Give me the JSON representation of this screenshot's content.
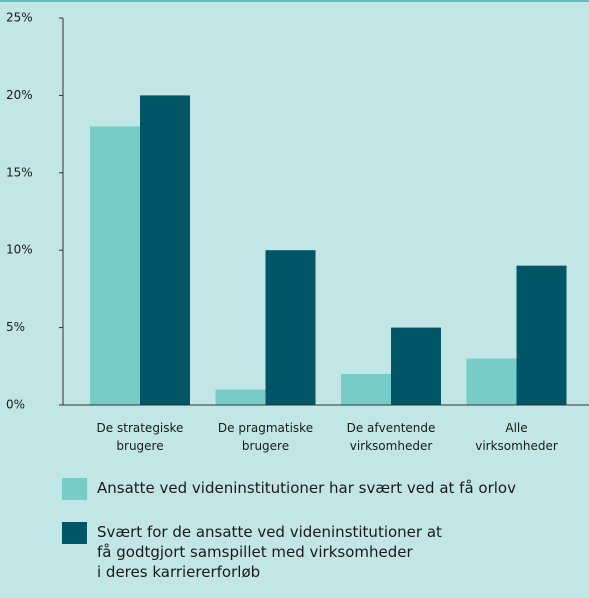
{
  "chart_data": {
    "type": "bar",
    "categories": [
      "De strategiske\nbrugere",
      "De pragmatiske\nbrugere",
      "De afventende\nvirksomheder",
      "Alle\nvirksomheder"
    ],
    "series": [
      {
        "name": "Ansatte ved videninstitutioner har svært ved at få orlov",
        "color": "#77ccc8",
        "values": [
          18,
          1,
          2,
          3
        ]
      },
      {
        "name": "Svært for de ansatte ved videninstitutioner at\nfå godtgjort samspillet med virksomheder\ni deres karriererforløb",
        "color": "#005566",
        "values": [
          20,
          10,
          5,
          9
        ]
      }
    ],
    "ylim": [
      0,
      25
    ],
    "yticks": [
      {
        "value": 0,
        "label": "0%"
      },
      {
        "value": 5,
        "label": "5%"
      },
      {
        "value": 10,
        "label": "10%"
      },
      {
        "value": 15,
        "label": "15%"
      },
      {
        "value": 20,
        "label": "20%"
      },
      {
        "value": 25,
        "label": "25%"
      }
    ],
    "grid": false
  }
}
